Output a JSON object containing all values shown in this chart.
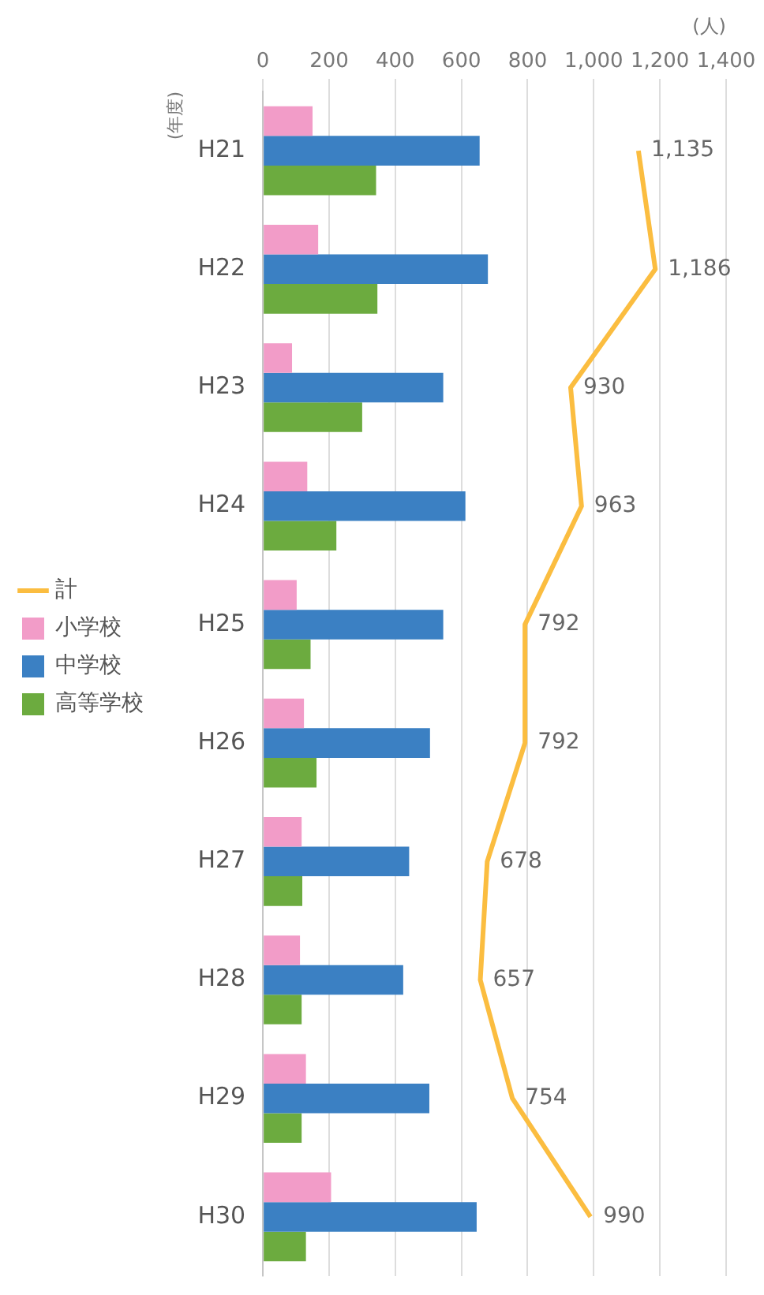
{
  "chart_data": {
    "type": "bar",
    "orientation": "horizontal",
    "xlabel": "(人)",
    "ylabel": "(年度)",
    "categories": [
      "H21",
      "H22",
      "H23",
      "H24",
      "H25",
      "H26",
      "H27",
      "H28",
      "H29",
      "H30"
    ],
    "series": [
      {
        "name": "小学校",
        "color": "#f29cc8",
        "values": [
          150,
          167,
          88,
          134,
          102,
          124,
          117,
          112,
          130,
          206
        ]
      },
      {
        "name": "中学校",
        "color": "#3b80c3",
        "values": [
          655,
          680,
          545,
          612,
          545,
          505,
          442,
          424,
          503,
          646
        ]
      },
      {
        "name": "高等学校",
        "color": "#6cab3f",
        "values": [
          342,
          346,
          300,
          222,
          144,
          162,
          119,
          117,
          117,
          130
        ]
      },
      {
        "name": "計",
        "type": "line",
        "color": "#fbbd40",
        "marker": "none",
        "values": [
          1135,
          1186,
          930,
          963,
          792,
          792,
          678,
          657,
          754,
          990
        ],
        "value_labels": [
          "1,135",
          "1,186",
          "930",
          "963",
          "792",
          "792",
          "678",
          "657",
          "754",
          "990"
        ]
      }
    ],
    "xlim": [
      0,
      1400
    ],
    "xticks": [
      0,
      200,
      400,
      600,
      800,
      {
        "value": 1000,
        "label": "1,000"
      },
      {
        "value": 1200,
        "label": "1,200"
      },
      {
        "value": 1400,
        "label": "1,400"
      }
    ],
    "grid": "x",
    "legend": "left"
  }
}
